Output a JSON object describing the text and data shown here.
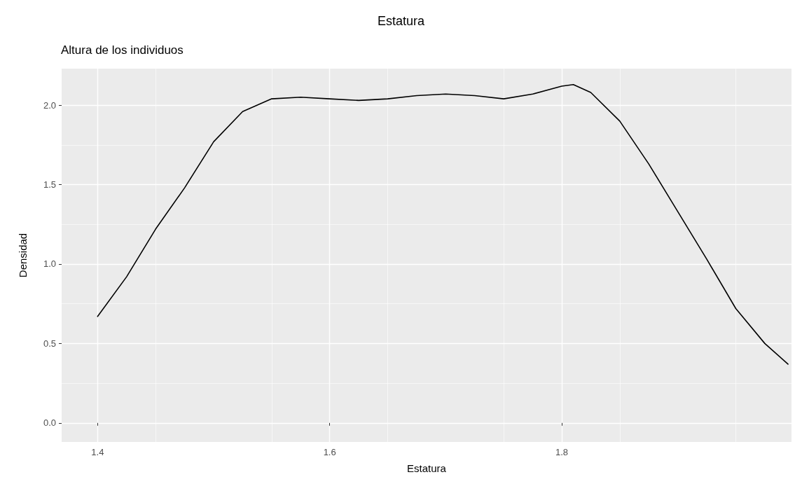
{
  "chart_data": {
    "type": "line",
    "title": "Estatura",
    "subtitle": "Altura de los individuos",
    "xlabel": "Estatura",
    "ylabel": "Densidad",
    "x": [
      1.4,
      1.425,
      1.45,
      1.475,
      1.5,
      1.525,
      1.55,
      1.575,
      1.6,
      1.625,
      1.65,
      1.675,
      1.7,
      1.725,
      1.75,
      1.775,
      1.8,
      1.81,
      1.825,
      1.85,
      1.875,
      1.9,
      1.925,
      1.95,
      1.975,
      1.995
    ],
    "series": [
      {
        "color": "#000000",
        "values": [
          0.67,
          0.92,
          1.22,
          1.48,
          1.77,
          1.96,
          2.04,
          2.05,
          2.04,
          2.03,
          2.04,
          2.06,
          2.07,
          2.06,
          2.04,
          2.07,
          2.12,
          2.13,
          2.08,
          1.9,
          1.63,
          1.33,
          1.03,
          0.72,
          0.5,
          0.37
        ]
      }
    ],
    "xlim": [
      1.369,
      1.998
    ],
    "xticks": [
      1.4,
      1.6,
      1.8
    ],
    "ylim": [
      -0.12,
      2.23
    ],
    "yticks": [
      {
        "value": 0,
        "label": "0.0"
      },
      0.5,
      {
        "value": 1,
        "label": "1.0"
      },
      1.5,
      {
        "value": 2,
        "label": "2.0"
      }
    ],
    "grid": true,
    "marker": "none",
    "line_style": "solid"
  }
}
